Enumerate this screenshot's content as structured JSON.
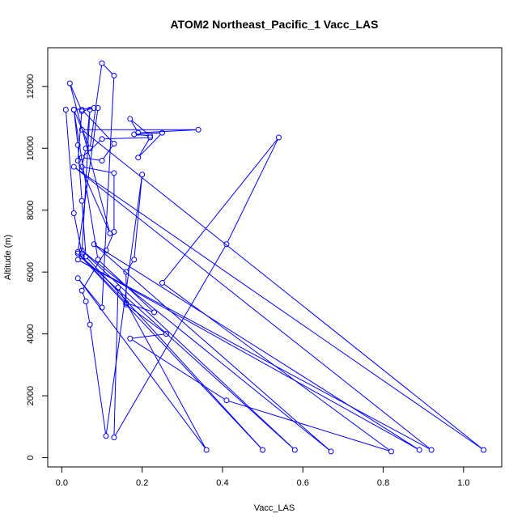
{
  "chart_data": {
    "type": "line",
    "title": "ATOM2 Northeast_Pacific_1 Vacc_LAS",
    "xlabel": "Vacc_LAS",
    "ylabel": "Altitude (m)",
    "xlim": [
      -0.035,
      1.095
    ],
    "ylim": [
      -300,
      13250
    ],
    "xticks": [
      0.0,
      0.2,
      0.4,
      0.6,
      0.8,
      1.0
    ],
    "yticks": [
      0,
      2000,
      4000,
      6000,
      8000,
      10000,
      12000
    ],
    "xtick_labels": [
      "0.0",
      "0.2",
      "0.4",
      "0.6",
      "0.8",
      "1.0"
    ],
    "ytick_labels": [
      "0",
      "2000",
      "4000",
      "6000",
      "8000",
      "10000",
      "12000"
    ],
    "grid": false,
    "legend": "none",
    "series": [
      {
        "color": "#0000ff",
        "marker": "open-circle",
        "points": [
          [
            0.01,
            11250
          ],
          [
            0.03,
            7900
          ],
          [
            0.05,
            6600
          ],
          [
            0.07,
            11250
          ],
          [
            0.06,
            10000
          ],
          [
            0.05,
            9400
          ],
          [
            0.13,
            9200
          ],
          [
            0.13,
            7300
          ],
          [
            0.11,
            6700
          ],
          [
            0.05,
            5400
          ],
          [
            0.06,
            5050
          ],
          [
            0.07,
            4300
          ],
          [
            0.11,
            700
          ],
          [
            0.2,
            9150
          ],
          [
            0.18,
            6400
          ],
          [
            0.16,
            6000
          ],
          [
            0.16,
            4950
          ],
          [
            0.26,
            4000
          ],
          [
            0.17,
            3850
          ],
          [
            0.41,
            1850
          ],
          [
            0.82,
            200
          ],
          [
            0.25,
            5650
          ],
          [
            0.54,
            10350
          ],
          [
            0.41,
            6900
          ],
          [
            0.13,
            650
          ],
          [
            0.14,
            5500
          ],
          [
            0.36,
            250
          ],
          [
            0.04,
            5800
          ],
          [
            0.1,
            4850
          ],
          [
            0.13,
            12350
          ],
          [
            0.1,
            12750
          ],
          [
            0.07,
            10000
          ],
          [
            0.03,
            11250
          ],
          [
            0.04,
            10100
          ],
          [
            0.05,
            8300
          ],
          [
            0.06,
            6500
          ],
          [
            0.5,
            250
          ],
          [
            0.04,
            6600
          ],
          [
            0.58,
            250
          ],
          [
            0.05,
            6700
          ],
          [
            0.67,
            200
          ],
          [
            0.08,
            6900
          ],
          [
            0.89,
            250
          ],
          [
            0.04,
            6400
          ],
          [
            0.92,
            250
          ],
          [
            0.03,
            9400
          ],
          [
            1.05,
            250
          ],
          [
            0.05,
            10600
          ],
          [
            0.34,
            10600
          ],
          [
            0.19,
            10500
          ],
          [
            0.17,
            10950
          ],
          [
            0.22,
            10400
          ],
          [
            0.18,
            10450
          ],
          [
            0.25,
            10500
          ],
          [
            0.19,
            9700
          ],
          [
            0.22,
            10350
          ],
          [
            0.1,
            10300
          ],
          [
            0.05,
            9700
          ],
          [
            0.1,
            9600
          ],
          [
            0.13,
            10150
          ],
          [
            0.05,
            11250
          ],
          [
            0.04,
            9600
          ],
          [
            0.12,
            7250
          ],
          [
            0.02,
            12100
          ],
          [
            0.05,
            11200
          ],
          [
            0.08,
            11300
          ],
          [
            0.03,
            11250
          ],
          [
            0.09,
            6400
          ],
          [
            0.23,
            4700
          ],
          [
            0.16,
            5000
          ],
          [
            0.05,
            6500
          ],
          [
            0.04,
            6650
          ],
          [
            0.09,
            11300
          ]
        ]
      }
    ]
  }
}
